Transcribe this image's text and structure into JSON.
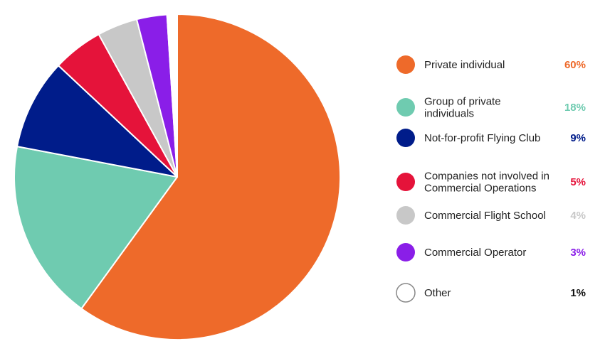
{
  "chart_data": {
    "type": "pie",
    "legend_position": "right",
    "slices": [
      {
        "label": "Private individual",
        "label_lines": [
          "Private individual"
        ],
        "value": 60,
        "value_label": "60%",
        "color": "#EE6A2A",
        "value_color": "#EE6A2A"
      },
      {
        "label": "Group of private individuals",
        "label_lines": [
          "Group of private",
          "individuals"
        ],
        "value": 18,
        "value_label": "18%",
        "color": "#6FCBB0",
        "value_color": "#6FCBB0"
      },
      {
        "label": "Not-for-profit Flying Club",
        "label_lines": [
          "Not-for-profit Flying Club"
        ],
        "value": 9,
        "value_label": "9%",
        "color": "#001C8A",
        "value_color": "#001C8A"
      },
      {
        "label": "Companies not involved in Commercial Operations",
        "label_lines": [
          "Companies not involved in",
          "Commercial Operations"
        ],
        "value": 5,
        "value_label": "5%",
        "color": "#E5133A",
        "value_color": "#E5133A"
      },
      {
        "label": "Commercial Flight School",
        "label_lines": [
          "Commercial Flight School"
        ],
        "value": 4,
        "value_label": "4%",
        "color": "#C8C8C8",
        "value_color": "#C8C8C8"
      },
      {
        "label": "Commercial Operator",
        "label_lines": [
          "Commercial Operator"
        ],
        "value": 3,
        "value_label": "3%",
        "color": "#8A1EE8",
        "value_color": "#8A1EE8"
      },
      {
        "label": "Other",
        "label_lines": [
          "Other"
        ],
        "value": 1,
        "value_label": "1%",
        "color": "#FFFFFF",
        "value_color": "#111111",
        "outline": "#888888"
      }
    ]
  }
}
